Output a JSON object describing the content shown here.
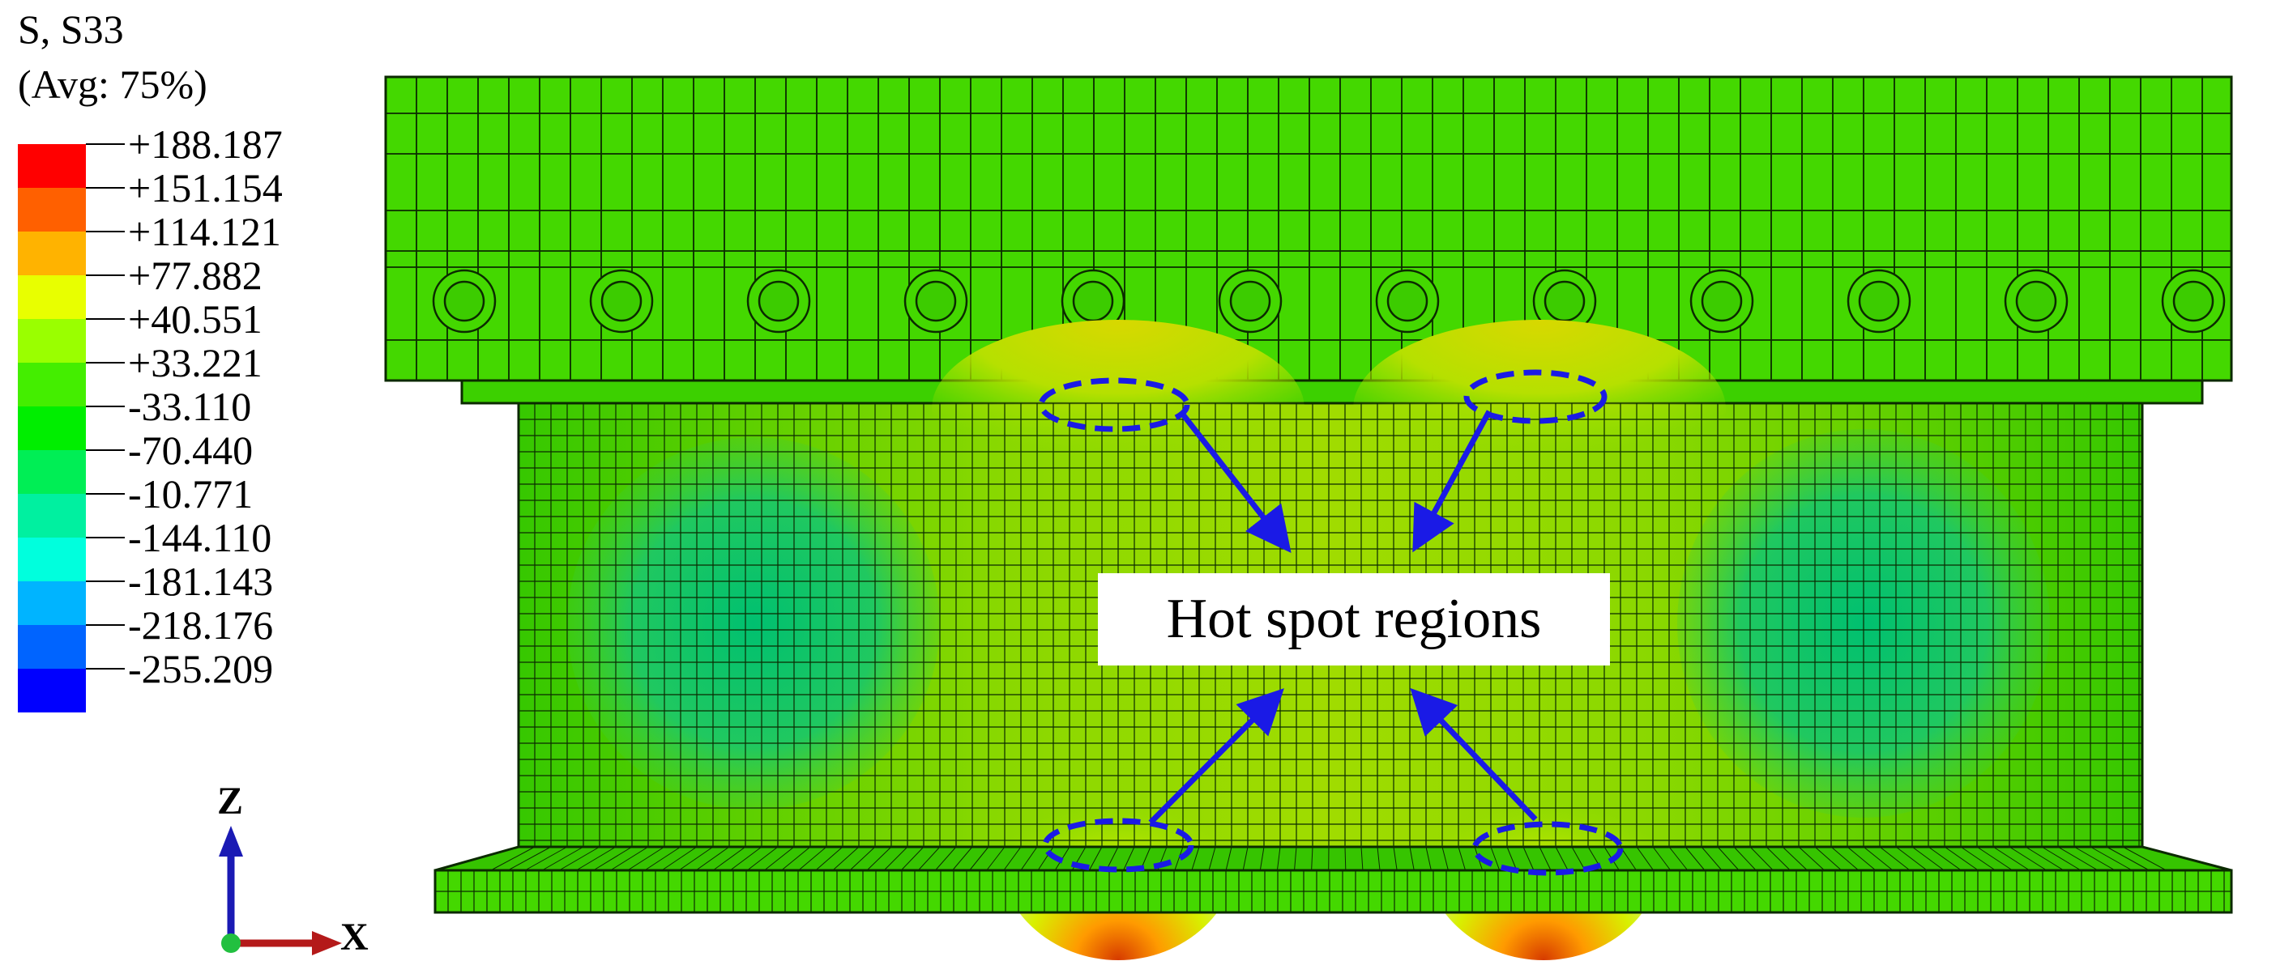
{
  "legend": {
    "title_line1": "S, S33",
    "title_line2": "(Avg: 75%)",
    "labels": [
      "+188.187",
      "+151.154",
      "+114.121",
      "+77.882",
      "+40.551",
      "+33.221",
      "-33.110",
      "-70.440",
      "-10.771",
      "-144.110",
      "-181.143",
      "-218.176",
      "-255.209"
    ],
    "colors": [
      "#ff0000",
      "#ff6000",
      "#ffb300",
      "#e8ff00",
      "#9aff00",
      "#44ee00",
      "#00ee00",
      "#00ee55",
      "#00f0a0",
      "#00ffdd",
      "#00b4ff",
      "#0064ff",
      "#0000ff"
    ]
  },
  "callout": {
    "text": "Hot spot regions",
    "arrow_color": "#1a1ae6"
  },
  "triad": {
    "z_label": "Z",
    "x_label": "X",
    "z_color": "#1a1ab4",
    "x_color": "#b41a1a"
  },
  "model_colors": {
    "base": "#3fd400",
    "mesh": "#0b2a00",
    "hot": "#d63a00",
    "warm": "#c8e000",
    "cool": "#22c860"
  }
}
